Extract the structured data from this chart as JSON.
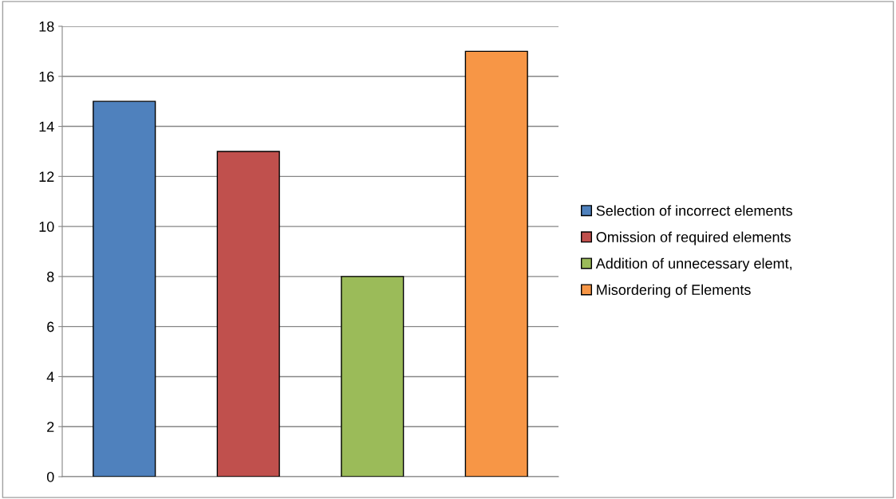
{
  "chart_data": {
    "type": "bar",
    "categories": [
      null,
      null,
      null,
      null
    ],
    "series": [
      {
        "name": "Selection of incorrect elements",
        "color": "#4f81bd",
        "values": [
          15,
          null,
          null,
          null
        ]
      },
      {
        "name": "Omission of required elements",
        "color": "#c0504d",
        "values": [
          null,
          13,
          null,
          null
        ]
      },
      {
        "name": "Addition of unnecessary elemt,",
        "color": "#9bbb59",
        "values": [
          null,
          null,
          8,
          null
        ]
      },
      {
        "name": "Misordering of Elements",
        "color": "#f79646",
        "values": [
          null,
          null,
          null,
          17
        ]
      }
    ],
    "ylim": [
      0,
      18
    ],
    "yticks": [
      0,
      2,
      4,
      6,
      8,
      10,
      12,
      14,
      16,
      18
    ],
    "grid": "y",
    "legend": "right"
  }
}
